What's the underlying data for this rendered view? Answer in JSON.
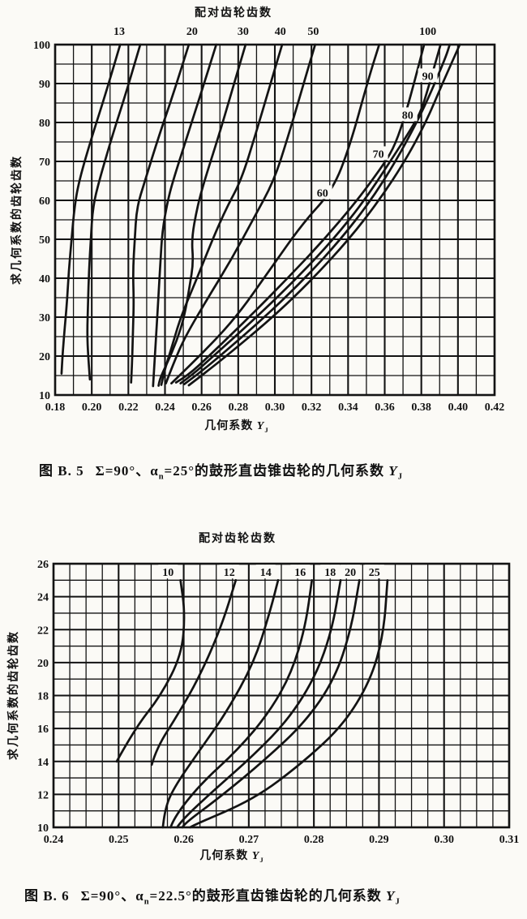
{
  "figure_b5": {
    "caption": {
      "figno": "图 B. 5",
      "pre": "Σ=90°、α",
      "alpha_sub": "n",
      "mid": "=25°的鼓形直齿锥齿轮的几何系数 ",
      "sym": "Y",
      "sym_sub": "J"
    }
  },
  "figure_b6": {
    "caption": {
      "figno": "图 B. 6",
      "pre": "Σ=90°、α",
      "alpha_sub": "n",
      "mid": "=22.5°的鼓形直齿锥齿轮的几何系数 ",
      "sym": "Y",
      "sym_sub": "J"
    }
  },
  "chart_data": [
    {
      "type": "line",
      "title": "配对齿轮齿数",
      "top_axis_title": "配对齿轮齿数",
      "xlabel": "几何系数 YJ",
      "xlabel_parts": {
        "pre": "几何系数 ",
        "sym": "Y",
        "sub": "J"
      },
      "ylabel": "求几何系数的齿轮齿数",
      "xlim": [
        0.18,
        0.42
      ],
      "xtick_step": 0.02,
      "xminor_step": 0.01,
      "ylim": [
        10,
        100
      ],
      "ytick_step": 10,
      "yminor_step": 5,
      "grid": true,
      "legend": "curve labels on plot",
      "xtick_labels": [
        "0.18",
        "0.20",
        "0.22",
        "0.24",
        "0.26",
        "0.28",
        "0.30",
        "0.32",
        "0.34",
        "0.36",
        "0.38",
        "0.40",
        "0.42"
      ],
      "ytick_labels": [
        "10",
        "20",
        "30",
        "40",
        "50",
        "60",
        "70",
        "80",
        "90",
        "100"
      ],
      "series": [
        {
          "name": "13",
          "top_label_x": 0.215,
          "points": [
            [
              0.1835,
              15.5
            ],
            [
              0.184,
              20
            ],
            [
              0.185,
              26
            ],
            [
              0.1865,
              34
            ],
            [
              0.1875,
              42
            ],
            [
              0.189,
              50
            ],
            [
              0.1905,
              58
            ],
            [
              0.193,
              65
            ],
            [
              0.2005,
              77
            ],
            [
              0.208,
              88
            ],
            [
              0.2155,
              100
            ]
          ]
        },
        {
          "name": "",
          "points": [
            [
              0.199,
              14
            ],
            [
              0.198,
              20
            ],
            [
              0.1975,
              26
            ],
            [
              0.198,
              34
            ],
            [
              0.1985,
              42
            ],
            [
              0.1995,
              50
            ],
            [
              0.2005,
              58
            ],
            [
              0.204,
              65
            ],
            [
              0.2115,
              77
            ],
            [
              0.219,
              88
            ],
            [
              0.2265,
              100
            ]
          ]
        },
        {
          "name": "20",
          "top_label_x": 0.2548,
          "points": [
            [
              0.2215,
              13.2
            ],
            [
              0.222,
              18
            ],
            [
              0.2225,
              26
            ],
            [
              0.223,
              34
            ],
            [
              0.2225,
              42
            ],
            [
              0.2235,
              50
            ],
            [
              0.2245,
              58
            ],
            [
              0.229,
              65
            ],
            [
              0.237,
              77
            ],
            [
              0.245,
              88
            ],
            [
              0.253,
              100
            ]
          ]
        },
        {
          "name": "",
          "points": [
            [
              0.2335,
              12.3
            ],
            [
              0.2345,
              20
            ],
            [
              0.2355,
              28
            ],
            [
              0.2365,
              36
            ],
            [
              0.2375,
              44
            ],
            [
              0.2385,
              52
            ],
            [
              0.2415,
              60
            ],
            [
              0.245,
              66
            ],
            [
              0.2525,
              77
            ],
            [
              0.26,
              88
            ],
            [
              0.268,
              100
            ]
          ]
        },
        {
          "name": "30",
          "top_label_x": 0.2827,
          "points": [
            [
              0.2365,
              12.4
            ],
            [
              0.237,
              14
            ],
            [
              0.241,
              18
            ],
            [
              0.2465,
              24
            ],
            [
              0.2505,
              30
            ],
            [
              0.2535,
              38
            ],
            [
              0.2555,
              44
            ],
            [
              0.2545,
              50
            ],
            [
              0.2575,
              58
            ],
            [
              0.2615,
              65
            ],
            [
              0.269,
              76
            ],
            [
              0.2765,
              88
            ],
            [
              0.284,
              100
            ]
          ]
        },
        {
          "name": "40",
          "top_label_x": 0.303,
          "points": [
            [
              0.238,
              12.6
            ],
            [
              0.2395,
              16
            ],
            [
              0.2435,
              22
            ],
            [
              0.2485,
              30
            ],
            [
              0.2575,
              40
            ],
            [
              0.266,
              50
            ],
            [
              0.2735,
              58
            ],
            [
              0.2815,
              65
            ],
            [
              0.2895,
              77
            ],
            [
              0.297,
              89
            ],
            [
              0.304,
              100
            ]
          ]
        },
        {
          "name": "50",
          "top_label_x": 0.321,
          "points": [
            [
              0.2405,
              13
            ],
            [
              0.2445,
              18
            ],
            [
              0.251,
              25
            ],
            [
              0.2635,
              35
            ],
            [
              0.2765,
              45
            ],
            [
              0.288,
              55
            ],
            [
              0.2995,
              65
            ],
            [
              0.307,
              76
            ],
            [
              0.3145,
              88
            ],
            [
              0.322,
              100
            ]
          ]
        },
        {
          "name": "60",
          "inner_label": {
            "x": 0.326,
            "y": 62
          },
          "points": [
            [
              0.2435,
              13
            ],
            [
              0.259,
              20
            ],
            [
              0.279,
              30
            ],
            [
              0.297,
              42
            ],
            [
              0.315,
              54
            ],
            [
              0.3315,
              62.5
            ],
            [
              0.341,
              74
            ],
            [
              0.351,
              91
            ],
            [
              0.357,
              100
            ]
          ]
        },
        {
          "name": "70",
          "inner_label": {
            "x": 0.3565,
            "y": 72
          },
          "points": [
            [
              0.246,
              13.2
            ],
            [
              0.2525,
              15
            ],
            [
              0.264,
              20
            ],
            [
              0.286,
              30
            ],
            [
              0.307,
              40
            ],
            [
              0.327,
              50
            ],
            [
              0.345,
              60
            ],
            [
              0.3575,
              68
            ],
            [
              0.3645,
              73
            ],
            [
              0.37,
              80
            ],
            [
              0.376,
              90
            ],
            [
              0.3815,
              100
            ]
          ]
        },
        {
          "name": "80",
          "inner_label": {
            "x": 0.3725,
            "y": 82
          },
          "points": [
            [
              0.2485,
              13
            ],
            [
              0.2545,
              15
            ],
            [
              0.2665,
              20
            ],
            [
              0.29,
              30
            ],
            [
              0.312,
              40
            ],
            [
              0.332,
              50
            ],
            [
              0.349,
              60
            ],
            [
              0.363,
              70
            ],
            [
              0.374,
              78
            ],
            [
              0.38,
              83
            ],
            [
              0.3845,
              90
            ],
            [
              0.3905,
              100
            ]
          ]
        },
        {
          "name": "90",
          "inner_label": {
            "x": 0.3835,
            "y": 92
          },
          "points": [
            [
              0.2505,
              12.8
            ],
            [
              0.257,
              15
            ],
            [
              0.27,
              20
            ],
            [
              0.2945,
              30
            ],
            [
              0.3165,
              40
            ],
            [
              0.336,
              50
            ],
            [
              0.3525,
              60
            ],
            [
              0.366,
              70
            ],
            [
              0.3775,
              80
            ],
            [
              0.3855,
              88
            ],
            [
              0.3935,
              97
            ],
            [
              0.3955,
              100
            ]
          ]
        },
        {
          "name": "100",
          "top_label_x": 0.3835,
          "points": [
            [
              0.253,
              12.5
            ],
            [
              0.26,
              15
            ],
            [
              0.2735,
              20
            ],
            [
              0.299,
              30
            ],
            [
              0.321,
              40
            ],
            [
              0.3405,
              50
            ],
            [
              0.357,
              60
            ],
            [
              0.371,
              70
            ],
            [
              0.3825,
              80
            ],
            [
              0.3915,
              90
            ],
            [
              0.401,
              100
            ]
          ]
        }
      ]
    },
    {
      "type": "line",
      "title": "配对齿轮齿数",
      "top_axis_title": "配对齿轮齿数",
      "xlabel": "几何系数 YJ",
      "xlabel_parts": {
        "pre": "几何系数 ",
        "sym": "Y",
        "sub": "J"
      },
      "ylabel": "求几何系数的齿轮齿数",
      "xlim": [
        0.24,
        0.31
      ],
      "xtick_step": 0.01,
      "xminor_step": 0.0025,
      "ylim": [
        10,
        26
      ],
      "ytick_step": 2,
      "yminor_step": 1,
      "grid": true,
      "legend": "curve labels on plot",
      "xtick_labels": [
        "0.24",
        "0.25",
        "0.26",
        "0.27",
        "0.28",
        "0.29",
        "0.30",
        "0.31"
      ],
      "ytick_labels": [
        "10",
        "12",
        "14",
        "16",
        "18",
        "20",
        "22",
        "24",
        "26"
      ],
      "series": [
        {
          "name": "10",
          "inner_label": {
            "x": 0.2576,
            "y": 25.5
          },
          "points": [
            [
              0.2497,
              14
            ],
            [
              0.2525,
              16
            ],
            [
              0.2565,
              18
            ],
            [
              0.2597,
              20.5
            ],
            [
              0.2602,
              23
            ],
            [
              0.2595,
              25
            ]
          ]
        },
        {
          "name": "12",
          "inner_label": {
            "x": 0.267,
            "y": 25.5
          },
          "points": [
            [
              0.2551,
              13.8
            ],
            [
              0.2558,
              14.8
            ],
            [
              0.2592,
              16.9
            ],
            [
              0.2625,
              19.2
            ],
            [
              0.2658,
              22.2
            ],
            [
              0.268,
              25
            ]
          ]
        },
        {
          "name": "14",
          "inner_label": {
            "x": 0.2726,
            "y": 25.5
          },
          "points": [
            [
              0.2568,
              10
            ],
            [
              0.2571,
              11.2
            ],
            [
              0.2588,
              12.6
            ],
            [
              0.2625,
              14.7
            ],
            [
              0.2666,
              17
            ],
            [
              0.2708,
              20
            ],
            [
              0.2732,
              23
            ],
            [
              0.2745,
              25
            ]
          ]
        },
        {
          "name": "16",
          "inner_label": {
            "x": 0.2779,
            "y": 25.5
          },
          "points": [
            [
              0.258,
              10
            ],
            [
              0.2585,
              10.6
            ],
            [
              0.2625,
              12.6
            ],
            [
              0.2683,
              14.7
            ],
            [
              0.2732,
              17
            ],
            [
              0.2766,
              19.4
            ],
            [
              0.2787,
              22.2
            ],
            [
              0.2797,
              25
            ]
          ]
        },
        {
          "name": "18",
          "inner_label": {
            "x": 0.2825,
            "y": 25.5
          },
          "points": [
            [
              0.259,
              10
            ],
            [
              0.2596,
              10.4
            ],
            [
              0.2645,
              12.2
            ],
            [
              0.2708,
              14.4
            ],
            [
              0.2762,
              16.6
            ],
            [
              0.2803,
              19.2
            ],
            [
              0.2828,
              22
            ],
            [
              0.2841,
              25
            ]
          ]
        },
        {
          "name": "20",
          "inner_label": {
            "x": 0.2856,
            "y": 25.5
          },
          "points": [
            [
              0.2598,
              10
            ],
            [
              0.26,
              10.2
            ],
            [
              0.2658,
              11.9
            ],
            [
              0.2725,
              14.1
            ],
            [
              0.2787,
              16.4
            ],
            [
              0.2832,
              19
            ],
            [
              0.2857,
              22
            ],
            [
              0.287,
              25
            ]
          ]
        },
        {
          "name": "25",
          "inner_label": {
            "x": 0.2893,
            "y": 25.5
          },
          "points": [
            [
              0.261,
              10
            ],
            [
              0.2613,
              10.1
            ],
            [
              0.2708,
              11.7
            ],
            [
              0.2782,
              13.9
            ],
            [
              0.2845,
              16.2
            ],
            [
              0.2887,
              18.9
            ],
            [
              0.2907,
              21.7
            ],
            [
              0.2913,
              25
            ]
          ]
        }
      ]
    }
  ]
}
